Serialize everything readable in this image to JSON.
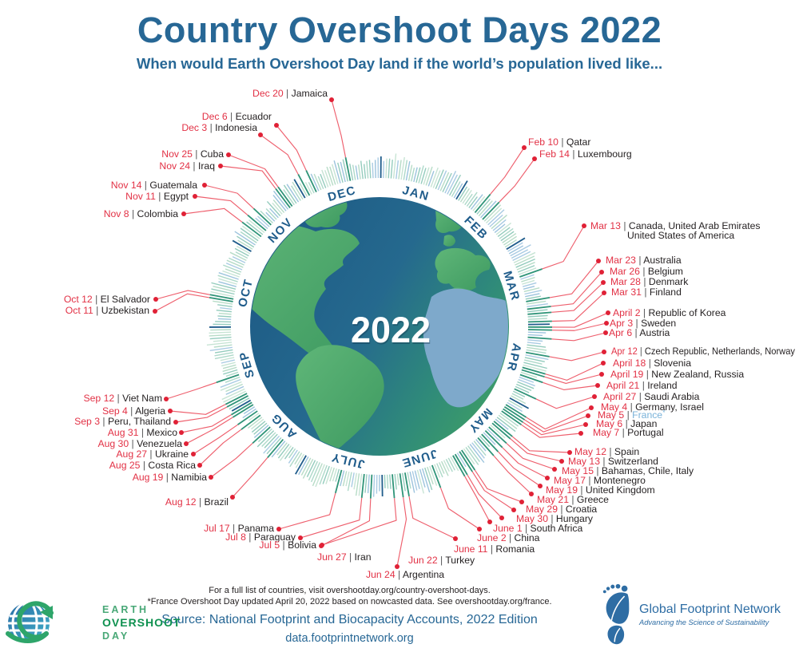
{
  "header": {
    "title": "Country Overshoot Days 2022",
    "subtitle": "When would Earth Overshoot Day land if the world’s population lived like..."
  },
  "footer": {
    "note1": "For a full list of countries, visit overshootday.org/country-overshoot-days.",
    "note2": "*France Overshoot Day updated April 20, 2022 based on nowcasted data. See overshootday.org/france.",
    "source": "Source: National Footprint and Biocapacity Accounts, 2022 Edition",
    "url": "data.footprintnetwork.org"
  },
  "logos": {
    "eod": {
      "line1": "EARTH",
      "line2": "OVERSHOOT",
      "line3": "DAY"
    },
    "gfn": {
      "name": "Global Footprint Network",
      "tagline": "Advancing the Science of Sustainability"
    }
  },
  "chart_data": {
    "type": "circular-calendar",
    "title": "Country Overshoot Days 2022",
    "year": "2022",
    "months": [
      {
        "label": "JAN",
        "mid": 16
      },
      {
        "label": "FEB",
        "mid": 45.5
      },
      {
        "label": "MAR",
        "mid": 74.5
      },
      {
        "label": "APR",
        "mid": 105
      },
      {
        "label": "MAY",
        "mid": 135.5
      },
      {
        "label": "JUNE",
        "mid": 166
      },
      {
        "label": "JULY",
        "mid": 196.5
      },
      {
        "label": "AUG",
        "mid": 227.5
      },
      {
        "label": "SEP",
        "mid": 258
      },
      {
        "label": "OCT",
        "mid": 288.5
      },
      {
        "label": "NOV",
        "mid": 319
      },
      {
        "label": "DEC",
        "mid": 349.5
      }
    ],
    "month_start_days": [
      1,
      32,
      60,
      91,
      121,
      152,
      182,
      213,
      244,
      274,
      305,
      335
    ],
    "colors": {
      "month": "#1f5c8b",
      "tick_palette": [
        "#a9cbe3",
        "#b7dcc7",
        "#94ccbd",
        "#c7e4d4",
        "#9cc3dd",
        "#add9c9"
      ],
      "tick_highlight": "#2f9478",
      "tick_month": "#1f5c8b",
      "line": "#ee5f6d",
      "dot": "#e02136",
      "date": "#e23145",
      "country": "#231f20",
      "separator": "#58595b",
      "france": "#79b2d9"
    },
    "entries": [
      {
        "date": "Dec 20",
        "countries": "Jamaica",
        "day": 354,
        "dot": [
          415,
          125
        ],
        "text": [
          410,
          121
        ],
        "anchor": "end"
      },
      {
        "date": "Dec 6",
        "countries": "Ecuador",
        "day": 340,
        "dot": [
          346,
          157
        ],
        "text": [
          340,
          150
        ],
        "anchor": "end"
      },
      {
        "date": "Dec 3",
        "countries": "Indonesia",
        "day": 337,
        "dot": [
          326,
          169
        ],
        "text": [
          322,
          164
        ],
        "anchor": "end"
      },
      {
        "date": "Nov 25",
        "countries": "Cuba",
        "day": 329,
        "dot": [
          286,
          194
        ],
        "text": [
          280,
          197
        ],
        "anchor": "end"
      },
      {
        "date": "Nov 24",
        "countries": "Iraq",
        "day": 328,
        "dot": [
          276,
          208
        ],
        "text": [
          269,
          212
        ],
        "anchor": "end"
      },
      {
        "date": "Nov 14",
        "countries": "Guatemala",
        "day": 318,
        "dot": [
          256,
          232
        ],
        "text": [
          247,
          236
        ],
        "anchor": "end"
      },
      {
        "date": "Nov 11",
        "countries": "Egypt",
        "day": 315,
        "dot": [
          244,
          246
        ],
        "text": [
          236,
          250
        ],
        "anchor": "end"
      },
      {
        "date": "Nov 8",
        "countries": "Colombia",
        "day": 312,
        "dot": [
          230,
          268
        ],
        "text": [
          223,
          272
        ],
        "anchor": "end"
      },
      {
        "date": "Oct 12",
        "countries": "El Salvador",
        "day": 285,
        "dot": [
          195,
          375
        ],
        "text": [
          188,
          379
        ],
        "anchor": "end"
      },
      {
        "date": "Oct 11",
        "countries": "Uzbekistan",
        "day": 284,
        "dot": [
          194,
          390
        ],
        "text": [
          187,
          393
        ],
        "anchor": "end"
      },
      {
        "date": "Sep 12",
        "countries": "Viet Nam",
        "day": 255,
        "dot": [
          208,
          500
        ],
        "text": [
          203,
          503
        ],
        "anchor": "end"
      },
      {
        "date": "Sep 4",
        "countries": "Algeria",
        "day": 247,
        "dot": [
          213,
          515
        ],
        "text": [
          207,
          519
        ],
        "anchor": "end"
      },
      {
        "date": "Sep 3",
        "countries": "Peru, Thailand",
        "day": 246,
        "dot": [
          220,
          529
        ],
        "text": [
          214,
          532
        ],
        "anchor": "end"
      },
      {
        "date": "Aug 31",
        "countries": "Mexico",
        "day": 243,
        "dot": [
          227,
          542
        ],
        "text": [
          222,
          546
        ],
        "anchor": "end"
      },
      {
        "date": "Aug 30",
        "countries": "Venezuela",
        "day": 242,
        "dot": [
          233,
          556
        ],
        "text": [
          228,
          560
        ],
        "anchor": "end"
      },
      {
        "date": "Aug 27",
        "countries": "Ukraine",
        "day": 239,
        "dot": [
          242,
          569
        ],
        "text": [
          236,
          573
        ],
        "anchor": "end"
      },
      {
        "date": "Aug 25",
        "countries": "Costa Rica",
        "day": 237,
        "dot": [
          250,
          583
        ],
        "text": [
          245,
          587
        ],
        "anchor": "end"
      },
      {
        "date": "Aug 19",
        "countries": "Namibia",
        "day": 231,
        "dot": [
          264,
          598
        ],
        "text": [
          259,
          602
        ],
        "anchor": "end"
      },
      {
        "date": "Aug 12",
        "countries": "Brazil",
        "day": 224,
        "dot": [
          291,
          623
        ],
        "text": [
          286,
          633
        ],
        "anchor": "end"
      },
      {
        "date": "Jul 17",
        "countries": "Panama",
        "day": 198,
        "dot": [
          349,
          663
        ],
        "text": [
          343,
          666
        ],
        "anchor": "end"
      },
      {
        "date": "Jul 8",
        "countries": "Paraguay",
        "day": 189,
        "dot": [
          376,
          674
        ],
        "text": [
          370,
          677
        ],
        "anchor": "end"
      },
      {
        "date": "Jul 5",
        "countries": "Bolivia",
        "day": 186,
        "dot": [
          402,
          684
        ],
        "text": [
          396,
          687
        ],
        "anchor": "end"
      },
      {
        "date": "Jun 27",
        "countries": "Iran",
        "day": 178,
        "dot": [
          403,
          683
        ],
        "text": [
          397,
          702
        ],
        "anchor": "start"
      },
      {
        "date": "Jun 24",
        "countries": "Argentina",
        "day": 175,
        "dot": [
          497,
          710
        ],
        "text": [
          458,
          724
        ],
        "anchor": "start"
      },
      {
        "date": "Jun 22",
        "countries": "Turkey",
        "day": 173,
        "dot": [
          570,
          675
        ],
        "text": [
          511,
          706
        ],
        "anchor": "start"
      },
      {
        "date": "June 11",
        "countries": "Romania",
        "day": 162,
        "dot": [
          600,
          663
        ],
        "text": [
          568,
          692
        ],
        "anchor": "start"
      },
      {
        "date": "June 2",
        "countries": "China",
        "day": 153,
        "dot": [
          613,
          654
        ],
        "text": [
          597,
          678
        ],
        "anchor": "start"
      },
      {
        "date": "June 1",
        "countries": "South Africa",
        "day": 152,
        "dot": [
          628,
          649
        ],
        "text": [
          617,
          666
        ],
        "anchor": "start"
      },
      {
        "date": "May 30",
        "countries": "Hungary",
        "day": 150,
        "dot": [
          643,
          639
        ],
        "text": [
          646,
          654
        ],
        "anchor": "start"
      },
      {
        "date": "May 29",
        "countries": "Croatia",
        "day": 149,
        "dot": [
          653,
          629
        ],
        "text": [
          658,
          642
        ],
        "anchor": "start"
      },
      {
        "date": "May 21",
        "countries": "Greece",
        "day": 141,
        "dot": [
          665,
          619
        ],
        "text": [
          672,
          630
        ],
        "anchor": "start"
      },
      {
        "date": "May 19",
        "countries": "United Kingdom",
        "day": 139,
        "dot": [
          676,
          609
        ],
        "text": [
          683,
          618
        ],
        "anchor": "start"
      },
      {
        "date": "May 17",
        "countries": "Montenegro",
        "day": 137,
        "dot": [
          685,
          599
        ],
        "text": [
          693,
          606
        ],
        "anchor": "start"
      },
      {
        "date": "May 15",
        "countries": "Bahamas, Chile, Italy",
        "day": 135,
        "dot": [
          694,
          588
        ],
        "text": [
          703,
          594
        ],
        "anchor": "start"
      },
      {
        "date": "May 13",
        "countries": "Switzerland",
        "day": 133,
        "dot": [
          703,
          578
        ],
        "text": [
          711,
          582
        ],
        "anchor": "start"
      },
      {
        "date": "May 12",
        "countries": "Spain",
        "day": 132,
        "dot": [
          713,
          567
        ],
        "text": [
          719,
          570
        ],
        "anchor": "start"
      },
      {
        "date": "May 7",
        "countries": "Portugal",
        "day": 127,
        "dot": [
          727,
          543
        ],
        "text": [
          742,
          546
        ],
        "anchor": "start"
      },
      {
        "date": "May 6",
        "countries": "Japan",
        "day": 126,
        "dot": [
          733,
          532
        ],
        "text": [
          746,
          535
        ],
        "anchor": "start"
      },
      {
        "date": "May 5",
        "countries": "France",
        "france": true,
        "day": 125,
        "dot": [
          736,
          521
        ],
        "text": [
          748,
          524
        ],
        "anchor": "start"
      },
      {
        "date": "May 4",
        "countries": "Germany, Israel",
        "day": 124,
        "dot": [
          740,
          511
        ],
        "text": [
          752,
          514
        ],
        "anchor": "start"
      },
      {
        "date": "April 27",
        "countries": "Saudi Arabia",
        "day": 117,
        "dot": [
          744,
          497
        ],
        "text": [
          755,
          501
        ],
        "anchor": "start"
      },
      {
        "date": "April 21",
        "countries": "Ireland",
        "day": 111,
        "dot": [
          748,
          483
        ],
        "text": [
          759,
          487
        ],
        "anchor": "start"
      },
      {
        "date": "April 19",
        "countries": "New Zealand, Russia",
        "day": 109,
        "dot": [
          753,
          469
        ],
        "text": [
          764,
          473
        ],
        "anchor": "start"
      },
      {
        "date": "April 18",
        "countries": "Slovenia",
        "day": 108,
        "dot": [
          755,
          455
        ],
        "text": [
          767,
          459
        ],
        "anchor": "start"
      },
      {
        "date": "Apr 12",
        "countries": "Czech Republic, Netherlands, Norway",
        "day": 102,
        "dot": [
          756,
          441
        ],
        "text": [
          765,
          444
        ],
        "anchor": "start",
        "maxw": 230
      },
      {
        "date": "Apr 6",
        "countries": "Austria",
        "day": 96,
        "dot": [
          758,
          417
        ],
        "text": [
          762,
          421
        ],
        "anchor": "start"
      },
      {
        "date": "Apr 3",
        "countries": "Sweden",
        "day": 93,
        "dot": [
          759,
          405
        ],
        "text": [
          763,
          409
        ],
        "anchor": "start"
      },
      {
        "date": "April 2",
        "countries": "Republic of Korea",
        "day": 92,
        "dot": [
          761,
          392
        ],
        "text": [
          767,
          396
        ],
        "anchor": "start"
      },
      {
        "date": "Mar 31",
        "countries": "Finland",
        "day": 90,
        "dot": [
          756,
          367
        ],
        "text": [
          765,
          370
        ],
        "anchor": "start"
      },
      {
        "date": "Mar 28",
        "countries": "Denmark",
        "day": 87,
        "dot": [
          755,
          354
        ],
        "text": [
          764,
          357
        ],
        "anchor": "start"
      },
      {
        "date": "Mar 26",
        "countries": "Belgium",
        "day": 85,
        "dot": [
          753,
          341
        ],
        "text": [
          763,
          344
        ],
        "anchor": "start"
      },
      {
        "date": "Mar 23",
        "countries": "Australia",
        "day": 82,
        "dot": [
          749,
          327
        ],
        "text": [
          758,
          330
        ],
        "anchor": "start"
      },
      {
        "date": "Mar 13",
        "countries": "Canada, United Arab Emirates",
        "line2": "United States of America",
        "line2_dx": 46,
        "line2_dy": 12,
        "day": 72,
        "dot": [
          731,
          283
        ],
        "text": [
          739,
          287
        ],
        "anchor": "start"
      },
      {
        "date": "Feb 10",
        "countries": "Qatar",
        "day": 41,
        "dot": [
          656,
          185
        ],
        "text": [
          661,
          182
        ],
        "anchor": "start"
      },
      {
        "date": "Feb 14",
        "countries": "Luxembourg",
        "day": 45,
        "dot": [
          669,
          199
        ],
        "text": [
          675,
          197
        ],
        "anchor": "start"
      }
    ]
  }
}
